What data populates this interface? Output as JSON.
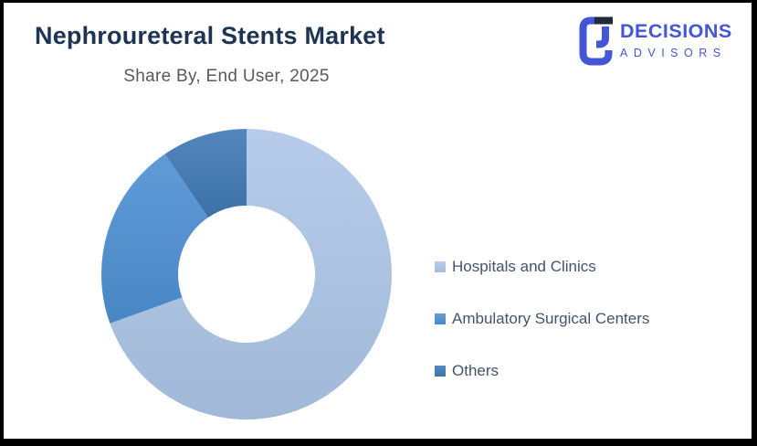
{
  "page": {
    "title": "Nephroureteral Stents Market",
    "subtitle": "Share By, End User, 2025"
  },
  "logo": {
    "line1": "DECISIONS",
    "line2": "ADVISORS",
    "brand_color": "#4355d8",
    "mark_dark_color": "#1f2b38"
  },
  "chart_data": {
    "type": "pie",
    "subtype": "donut",
    "title": "Nephroureteral Stents Market",
    "subtitle": "Share By, End User, 2025",
    "categories": [
      "Hospitals and Clinics",
      "Ambulatory Surgical Centers",
      "Others"
    ],
    "values": [
      69.5,
      21,
      9.5
    ],
    "unit": "percent share (estimated from arc angles; no data labels shown)",
    "colors": [
      "#AEC6E8",
      "#4E90D4",
      "#4079B4"
    ],
    "start_angle_deg": 0,
    "direction": "clockwise",
    "inner_radius_ratio": 0.47,
    "legend_position": "right",
    "data_labels_shown": false
  },
  "legend": {
    "items": [
      {
        "label": "Hospitals and Clinics",
        "color": "#AEC6E8"
      },
      {
        "label": "Ambulatory Surgical Centers",
        "color": "#4E90D4"
      },
      {
        "label": "Others",
        "color": "#4079B4"
      }
    ]
  },
  "theme": {
    "title_color": "#1d3452",
    "subtitle_color": "#595959",
    "legend_text_color": "#44546A",
    "background": "#ffffff",
    "border_color": "#000000"
  }
}
